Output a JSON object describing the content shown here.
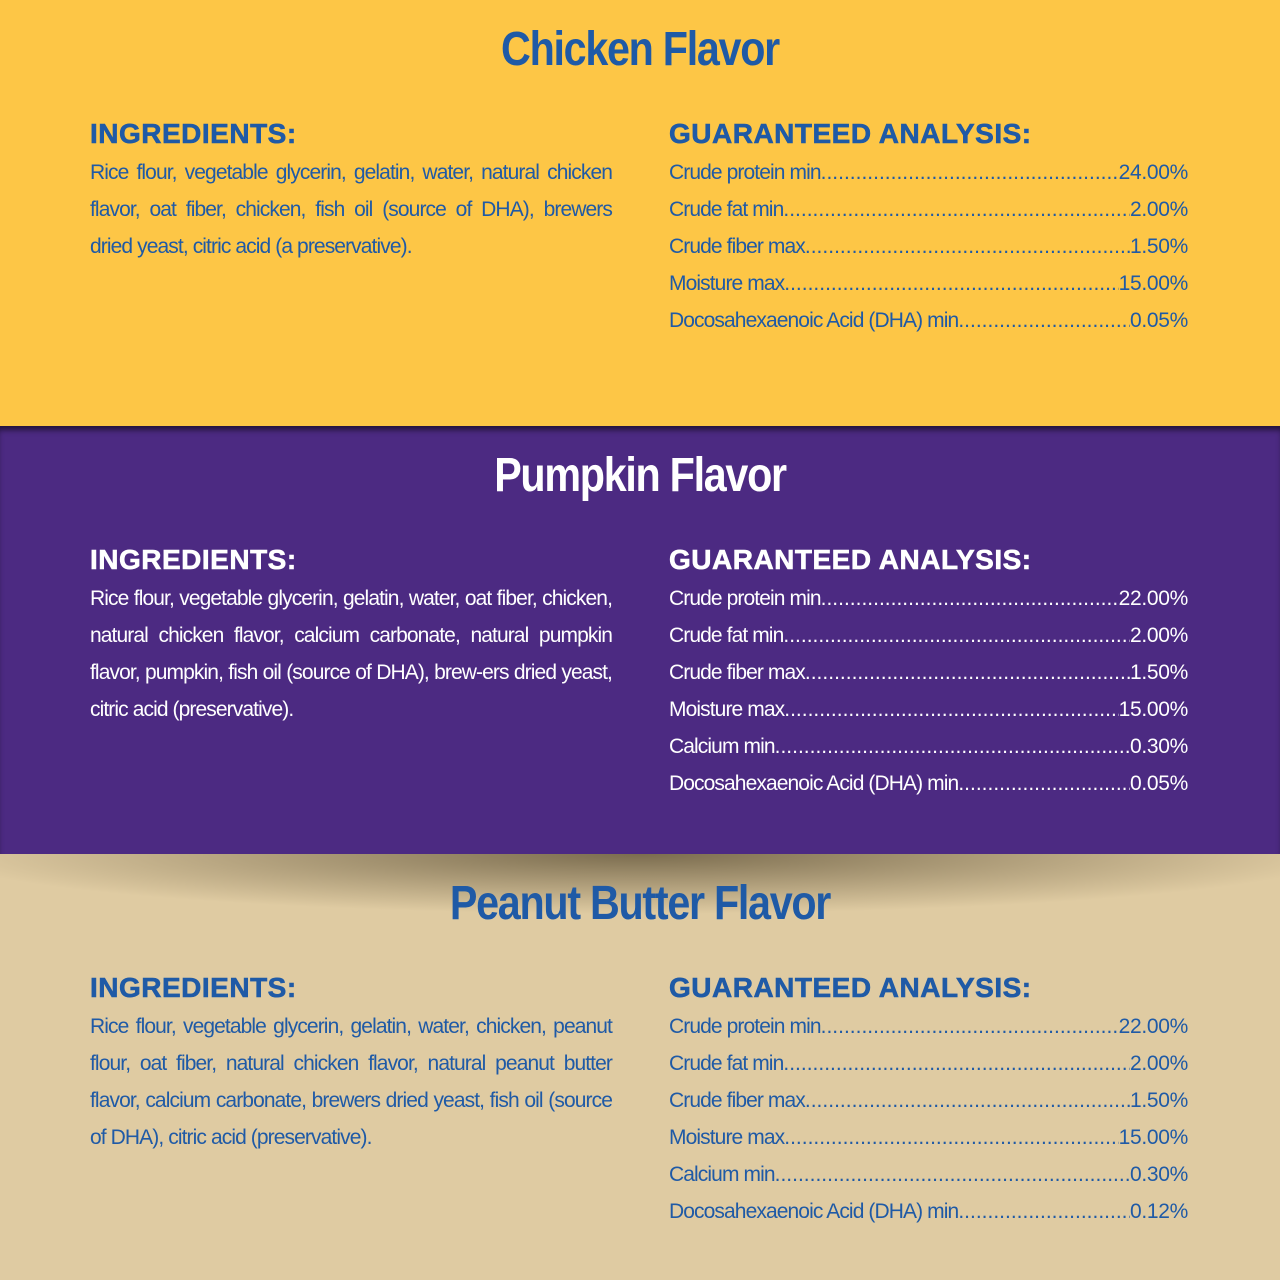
{
  "colors": {
    "yellow": "#fdc646",
    "purple": "#4c2a82",
    "tan": "#dfcba2",
    "blue_text": "#1f5aa6",
    "white_text": "#ffffff"
  },
  "sections": [
    {
      "title": "Chicken Flavor",
      "ingredients_heading": "INGREDIENTS:",
      "ingredients": "Rice flour, vegetable glycerin, gelatin, water, natural chicken flavor, oat fiber, chicken, fish oil (source of DHA), brewers dried yeast, citric acid (a preservative).",
      "analysis_heading": "GUARANTEED ANALYSIS:",
      "analysis": [
        {
          "label": "Crude protein min",
          "value": "24.00%"
        },
        {
          "label": "Crude fat min",
          "value": "2.00%"
        },
        {
          "label": "Crude fiber max",
          "value": "1.50%"
        },
        {
          "label": "Moisture max",
          "value": "15.00%"
        },
        {
          "label": "Docosahexaenoic Acid (DHA) min",
          "value": "0.05%"
        }
      ]
    },
    {
      "title": "Pumpkin Flavor",
      "ingredients_heading": "INGREDIENTS:",
      "ingredients": "Rice flour, vegetable glycerin, gelatin, water, oat fiber, chicken, natural chicken flavor, calcium carbonate, natural pumpkin flavor, pumpkin, fish oil (source of DHA), brew-ers dried yeast, citric acid (preservative).",
      "analysis_heading": "GUARANTEED ANALYSIS:",
      "analysis": [
        {
          "label": "Crude protein min",
          "value": "22.00%"
        },
        {
          "label": "Crude fat min",
          "value": "2.00%"
        },
        {
          "label": "Crude fiber max",
          "value": "1.50%"
        },
        {
          "label": "Moisture max",
          "value": "15.00%"
        },
        {
          "label": "Calcium min",
          "value": "0.30%"
        },
        {
          "label": "Docosahexaenoic Acid (DHA) min",
          "value": "0.05%"
        }
      ]
    },
    {
      "title": "Peanut Butter Flavor",
      "ingredients_heading": "INGREDIENTS:",
      "ingredients": "Rice flour, vegetable glycerin, gelatin, water, chicken, peanut flour, oat fiber, natural chicken flavor, natural peanut butter flavor, calcium carbonate, brewers dried yeast, fish oil (source of DHA), citric acid (preservative).",
      "analysis_heading": "GUARANTEED ANALYSIS:",
      "analysis": [
        {
          "label": "Crude protein min",
          "value": "22.00%"
        },
        {
          "label": "Crude fat min",
          "value": "2.00%"
        },
        {
          "label": "Crude fiber max",
          "value": "1.50%"
        },
        {
          "label": "Moisture max",
          "value": "15.00%"
        },
        {
          "label": "Calcium min",
          "value": "0.30%"
        },
        {
          "label": "Docosahexaenoic Acid (DHA) min",
          "value": "0.12%"
        }
      ]
    }
  ]
}
